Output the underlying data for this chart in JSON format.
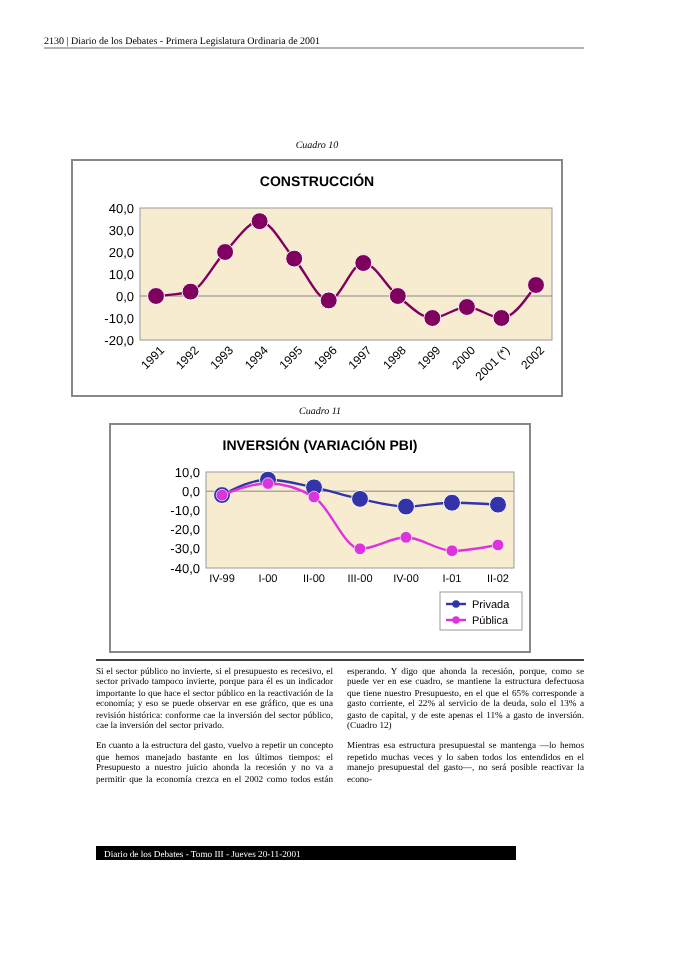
{
  "chart_data": [
    {
      "type": "line",
      "title": "CONSTRUCCIÓN",
      "subtitle": "Cuadro 10",
      "annotations": [
        "2130 | Diario de los Debates - Primera Legislatura Ordinaria de 2001"
      ],
      "categories": [
        "1991",
        "1992",
        "1993",
        "1994",
        "1995",
        "1996",
        "1997",
        "1998",
        "1999",
        "2000",
        "2001 (*)",
        "2002"
      ],
      "series": [
        {
          "color": "#800060",
          "values": [
            0,
            2,
            20,
            34,
            17,
            -2,
            15,
            0,
            -10,
            -5,
            -10,
            5
          ]
        }
      ],
      "ylim": [
        -20,
        40
      ],
      "yticks": [
        {
          "value": -20,
          "label": "-20,0"
        },
        {
          "value": -10,
          "label": "-10,0"
        },
        {
          "value": 0,
          "label": "0,0"
        },
        {
          "value": 10,
          "label": "10,0"
        },
        {
          "value": 20,
          "label": "20,0"
        },
        {
          "value": 30,
          "label": "30,0"
        },
        {
          "value": 40,
          "label": "40,0"
        }
      ],
      "marker": "circle",
      "legend": false
    },
    {
      "type": "line",
      "title": "INVERSIÓN (VARIACIÓN PBI)",
      "subtitle": "Cuadro 11",
      "annotations": [
        "Si el sector público no invierte, si el presupuesto es recesivo, el sector privado tampoco invierte, porque para él es un indicador importante lo que hace el sector público en la reactivación de la economía; y eso se puede observar en ese gráfico, que es una revisión histórica: conforme cae la inversión del sector público, cae la inversión del sector privado.",
        "En cuanto a la estructura del gasto, vuelvo a repetir un concepto que hemos manejado bastante en los últimos tiempos: el Presupuesto a nuestro juicio ahonda la recesión y no va a permitir que la economía crezca en el 2002 como todos están esperando. Y digo que ahonda la recesión, porque, como se puede ver en ese cuadro, se mantiene la estructura defectuosa que tiene nuestro Presupuesto, en el que el 65% corresponde a gasto corriente, el 22% al servicio de la deuda, solo el 13% a gasto de capital, y de este apenas el 11% a gasto de inversión. (Cuadro 12)",
        "Mientras esa estructura presupuestal se mantenga —lo hemos repetido muchas veces y lo saben todos los entendidos en el manejo presupuestal del gasto—, no será posible reactivar la econo-",
        "Diario de los Debates - Tomo III - Jueves 20-11-2001"
      ],
      "categories": [
        "IV-99",
        "I-00",
        "II-00",
        "III-00",
        "IV-00",
        "I-01",
        "II-02"
      ],
      "series": [
        {
          "name": "Privada",
          "color": "#3333aa",
          "values": [
            -2,
            6,
            2,
            -4,
            -8,
            -6,
            -7
          ]
        },
        {
          "name": "Pública",
          "color": "#dd33dd",
          "values": [
            -2,
            4,
            -3,
            -30,
            -24,
            -31,
            -28
          ]
        }
      ],
      "ylim": [
        -40,
        10
      ],
      "yticks": [
        {
          "value": -40,
          "label": "-40,0"
        },
        {
          "value": -30,
          "label": "-30,0"
        },
        {
          "value": -20,
          "label": "-20,0"
        },
        {
          "value": -10,
          "label": "-10,0"
        },
        {
          "value": 0,
          "label": "0,0"
        },
        {
          "value": 10,
          "label": "10,0"
        }
      ],
      "marker": "circle",
      "legend": "bottom right"
    }
  ]
}
